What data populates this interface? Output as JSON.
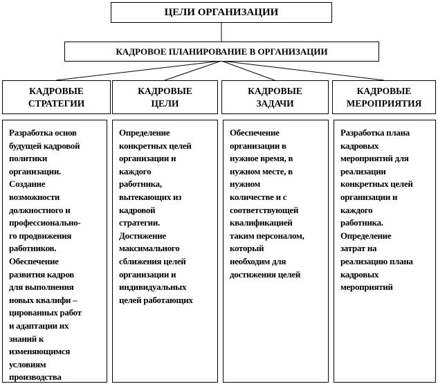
{
  "top": {
    "title": "ЦЕЛИ ОРГАНИЗАЦИИ"
  },
  "planning": {
    "title": "КАДРОВОЕ ПЛАНИРОВАНИЕ  В ОРГАНИЗАЦИИ"
  },
  "columns": [
    {
      "header": [
        "КАДРОВЫЕ",
        "СТРАТЕГИИ"
      ],
      "lines": [
        "Разработка основ",
        "будущей  кадровой",
        "политики",
        "организации.",
        "Создание",
        "возможности",
        "должностного и",
        "профессионально-",
        "го продвижения",
        "работников.",
        "Обеспечение",
        "развития кадров",
        "для выполнения",
        "новых квалифи  –",
        "цированных работ",
        "и адаптации их",
        "знаний к",
        "изменяющимся",
        "условиям",
        "производства"
      ]
    },
    {
      "header": [
        "КАДРОВЫЕ",
        "ЦЕЛИ"
      ],
      "lines": [
        "Определение",
        "конкретных целей",
        "организации и",
        "каждого",
        "работника,",
        "вытекающих из",
        "кадровой",
        "стратегии.",
        "Достижение",
        "максимального",
        "сближения целей",
        "организации и",
        "индивидуальных",
        "целей работающих"
      ]
    },
    {
      "header": [
        "КАДРОВЫЕ",
        "ЗАДАЧИ"
      ],
      "lines": [
        "Обеспечение",
        "организации в",
        "нужное время, в",
        "нужном месте, в",
        "нужном",
        "количестве и с",
        "соответствующей",
        "квалификацией",
        "таким персоналом,",
        "который",
        "необходим для",
        "достижения целей"
      ]
    },
    {
      "header": [
        "КАДРОВЫЕ",
        "МЕРОПРИЯТИЯ"
      ],
      "lines": [
        "Разработка плана",
        "кадровых",
        "мероприятий для",
        "реализации",
        "конкретных целей",
        "организации и",
        "каждого",
        "работника.",
        "Определение",
        "затрат на",
        "реализацию плана",
        "кадровых",
        "мероприятий"
      ]
    }
  ]
}
